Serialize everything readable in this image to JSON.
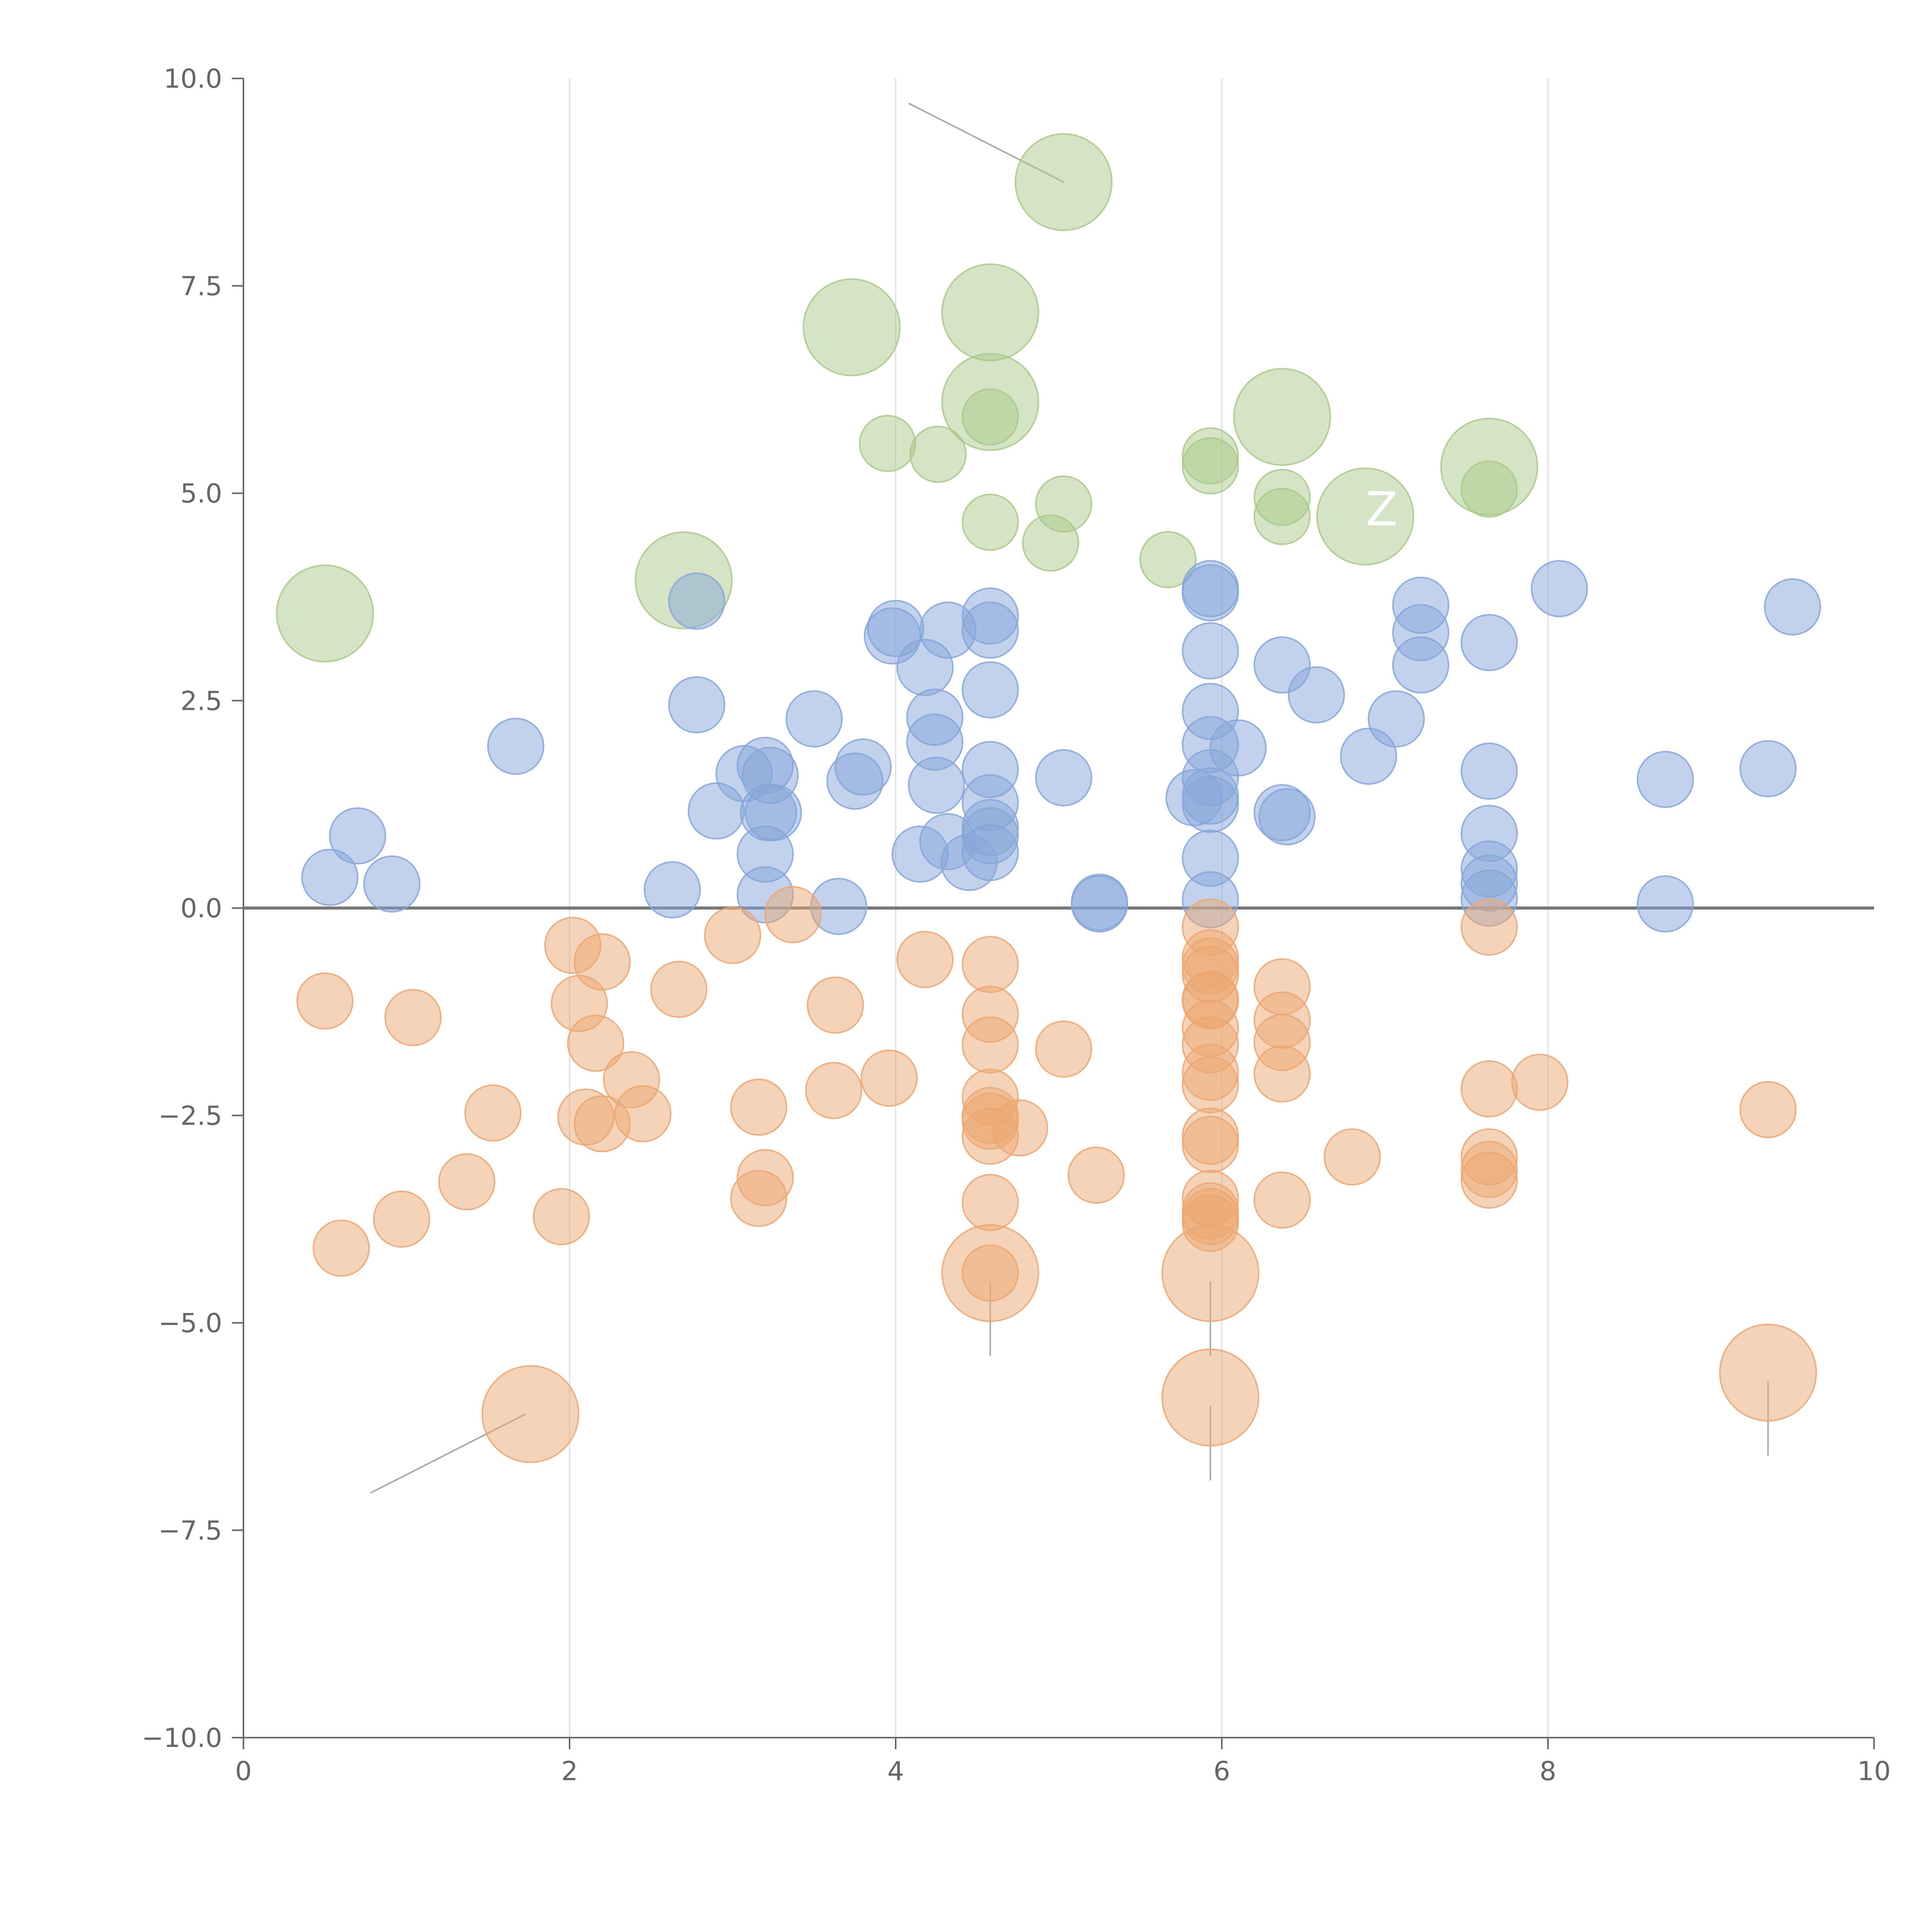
{
  "chart_data": {
    "type": "scatter",
    "title": "",
    "xlabel": "",
    "ylabel": "",
    "xlim": [
      0,
      10
    ],
    "ylim": [
      -10,
      10
    ],
    "x_ticks": [
      0,
      2,
      4,
      6,
      8,
      10
    ],
    "x_tick_labels": [
      "0",
      "2",
      "4",
      "6",
      "8",
      "10"
    ],
    "y_ticks": [
      10,
      7.5,
      5,
      2.5,
      0,
      -2.5,
      -5,
      -7.5,
      -10
    ],
    "y_tick_labels": [
      "10.0",
      "7.5",
      "5.0",
      "2.5",
      "0.0",
      "−2.5",
      "−5.0",
      "−7.5",
      "−10.0"
    ],
    "grid": "vertical",
    "zero_line": true,
    "legend": "none",
    "series": [
      {
        "name": "green",
        "color": "#a9c98a",
        "points": [
          {
            "x": 0.5,
            "y": 3.55,
            "r": 3
          },
          {
            "x": 2.7,
            "y": 3.95,
            "r": 3
          },
          {
            "x": 3.73,
            "y": 7.0,
            "r": 3
          },
          {
            "x": 4.58,
            "y": 7.18,
            "r": 3
          },
          {
            "x": 4.58,
            "y": 6.1,
            "r": 3
          },
          {
            "x": 5.03,
            "y": 8.75,
            "r": 3
          },
          {
            "x": 6.37,
            "y": 5.92,
            "r": 3
          },
          {
            "x": 6.88,
            "y": 4.72,
            "r": 3
          },
          {
            "x": 7.64,
            "y": 5.32,
            "r": 3
          },
          {
            "x": 3.95,
            "y": 5.6,
            "r": 1
          },
          {
            "x": 4.26,
            "y": 5.47,
            "r": 1
          },
          {
            "x": 4.58,
            "y": 5.92,
            "r": 1
          },
          {
            "x": 4.58,
            "y": 4.65,
            "r": 1
          },
          {
            "x": 5.03,
            "y": 4.87,
            "r": 1
          },
          {
            "x": 4.95,
            "y": 4.4,
            "r": 1
          },
          {
            "x": 5.67,
            "y": 4.2,
            "r": 1
          },
          {
            "x": 5.93,
            "y": 5.45,
            "r": 1
          },
          {
            "x": 5.93,
            "y": 5.33,
            "r": 1
          },
          {
            "x": 6.37,
            "y": 4.95,
            "r": 1
          },
          {
            "x": 6.37,
            "y": 4.72,
            "r": 1
          },
          {
            "x": 7.64,
            "y": 5.05,
            "r": 1
          }
        ]
      },
      {
        "name": "blue",
        "color": "#86a6d9",
        "points": [
          {
            "x": 0.53,
            "y": 0.37
          },
          {
            "x": 0.7,
            "y": 0.87
          },
          {
            "x": 0.91,
            "y": 0.29
          },
          {
            "x": 1.67,
            "y": 1.95
          },
          {
            "x": 2.63,
            "y": 0.22
          },
          {
            "x": 2.78,
            "y": 2.45
          },
          {
            "x": 2.78,
            "y": 3.7
          },
          {
            "x": 2.9,
            "y": 1.17
          },
          {
            "x": 3.07,
            "y": 1.62
          },
          {
            "x": 3.2,
            "y": 1.72
          },
          {
            "x": 3.23,
            "y": 1.6
          },
          {
            "x": 3.22,
            "y": 1.15
          },
          {
            "x": 3.25,
            "y": 1.15
          },
          {
            "x": 3.2,
            "y": 0.65
          },
          {
            "x": 3.2,
            "y": 0.16
          },
          {
            "x": 3.5,
            "y": 2.28
          },
          {
            "x": 3.65,
            "y": 0.02
          },
          {
            "x": 3.75,
            "y": 1.53
          },
          {
            "x": 3.8,
            "y": 1.7
          },
          {
            "x": 3.98,
            "y": 3.28
          },
          {
            "x": 4.0,
            "y": 3.37
          },
          {
            "x": 4.18,
            "y": 2.9
          },
          {
            "x": 4.15,
            "y": 0.65
          },
          {
            "x": 4.24,
            "y": 2.3
          },
          {
            "x": 4.24,
            "y": 2.0
          },
          {
            "x": 4.25,
            "y": 1.48
          },
          {
            "x": 4.32,
            "y": 3.35
          },
          {
            "x": 4.32,
            "y": 0.8
          },
          {
            "x": 4.45,
            "y": 0.55
          },
          {
            "x": 4.58,
            "y": 3.52
          },
          {
            "x": 4.58,
            "y": 3.35
          },
          {
            "x": 4.58,
            "y": 2.63
          },
          {
            "x": 4.58,
            "y": 1.67
          },
          {
            "x": 4.58,
            "y": 1.27
          },
          {
            "x": 4.58,
            "y": 0.97
          },
          {
            "x": 4.58,
            "y": 0.87
          },
          {
            "x": 4.58,
            "y": 0.67
          },
          {
            "x": 5.03,
            "y": 1.57
          },
          {
            "x": 5.25,
            "y": 0.07
          },
          {
            "x": 5.25,
            "y": 0.05
          },
          {
            "x": 5.83,
            "y": 1.33
          },
          {
            "x": 5.93,
            "y": 3.85
          },
          {
            "x": 5.93,
            "y": 3.8
          },
          {
            "x": 5.93,
            "y": 3.1
          },
          {
            "x": 5.93,
            "y": 2.37
          },
          {
            "x": 5.93,
            "y": 1.97
          },
          {
            "x": 5.93,
            "y": 1.57
          },
          {
            "x": 5.93,
            "y": 1.35
          },
          {
            "x": 5.93,
            "y": 1.25
          },
          {
            "x": 5.93,
            "y": 0.6
          },
          {
            "x": 5.93,
            "y": 0.1
          },
          {
            "x": 6.1,
            "y": 1.93
          },
          {
            "x": 6.37,
            "y": 2.93
          },
          {
            "x": 6.37,
            "y": 1.15
          },
          {
            "x": 6.4,
            "y": 1.1
          },
          {
            "x": 6.58,
            "y": 2.57
          },
          {
            "x": 6.9,
            "y": 1.83
          },
          {
            "x": 7.07,
            "y": 2.28
          },
          {
            "x": 7.22,
            "y": 3.65
          },
          {
            "x": 7.22,
            "y": 3.32
          },
          {
            "x": 7.22,
            "y": 2.93
          },
          {
            "x": 7.64,
            "y": 3.2
          },
          {
            "x": 7.64,
            "y": 1.65
          },
          {
            "x": 7.64,
            "y": 0.9
          },
          {
            "x": 7.64,
            "y": 0.47
          },
          {
            "x": 7.64,
            "y": 0.3
          },
          {
            "x": 7.64,
            "y": 0.12
          },
          {
            "x": 8.07,
            "y": 3.85
          },
          {
            "x": 8.72,
            "y": 1.55
          },
          {
            "x": 8.72,
            "y": 0.05
          },
          {
            "x": 9.35,
            "y": 1.68
          },
          {
            "x": 9.5,
            "y": 3.63
          }
        ]
      },
      {
        "name": "orange",
        "color": "#eba772",
        "points": [
          {
            "x": 1.76,
            "y": -6.1,
            "r": 3
          },
          {
            "x": 4.58,
            "y": -4.4,
            "r": 3
          },
          {
            "x": 5.93,
            "y": -4.4,
            "r": 3
          },
          {
            "x": 5.93,
            "y": -5.9,
            "r": 3
          },
          {
            "x": 9.35,
            "y": -5.6,
            "r": 3
          },
          {
            "x": 0.5,
            "y": -1.12,
            "r": 1
          },
          {
            "x": 0.6,
            "y": -4.1,
            "r": 1
          },
          {
            "x": 0.97,
            "y": -3.75,
            "r": 1
          },
          {
            "x": 1.04,
            "y": -1.32,
            "r": 1
          },
          {
            "x": 1.37,
            "y": -3.3,
            "r": 1
          },
          {
            "x": 1.53,
            "y": -2.47,
            "r": 1
          },
          {
            "x": 1.95,
            "y": -3.72,
            "r": 1
          },
          {
            "x": 2.02,
            "y": -0.45,
            "r": 1
          },
          {
            "x": 2.06,
            "y": -1.15,
            "r": 1
          },
          {
            "x": 2.1,
            "y": -2.52,
            "r": 1
          },
          {
            "x": 2.16,
            "y": -1.63,
            "r": 1
          },
          {
            "x": 2.2,
            "y": -0.65,
            "r": 1
          },
          {
            "x": 2.2,
            "y": -2.6,
            "r": 1
          },
          {
            "x": 2.38,
            "y": -2.07,
            "r": 1
          },
          {
            "x": 2.45,
            "y": -2.48,
            "r": 1
          },
          {
            "x": 2.67,
            "y": -0.98,
            "r": 1
          },
          {
            "x": 3.0,
            "y": -0.33,
            "r": 1
          },
          {
            "x": 3.16,
            "y": -2.4,
            "r": 1
          },
          {
            "x": 3.2,
            "y": -3.25,
            "r": 1
          },
          {
            "x": 3.16,
            "y": -3.5,
            "r": 1
          },
          {
            "x": 3.37,
            "y": -0.08,
            "r": 1
          },
          {
            "x": 3.62,
            "y": -2.2,
            "r": 1
          },
          {
            "x": 3.63,
            "y": -1.17,
            "r": 1
          },
          {
            "x": 3.96,
            "y": -2.05,
            "r": 1
          },
          {
            "x": 4.18,
            "y": -0.62,
            "r": 1
          },
          {
            "x": 4.58,
            "y": -0.68,
            "r": 1
          },
          {
            "x": 4.58,
            "y": -1.28,
            "r": 1
          },
          {
            "x": 4.58,
            "y": -1.65,
            "r": 1
          },
          {
            "x": 4.58,
            "y": -2.28,
            "r": 1
          },
          {
            "x": 4.58,
            "y": -2.5,
            "r": 1
          },
          {
            "x": 4.58,
            "y": -2.57,
            "r": 1
          },
          {
            "x": 4.58,
            "y": -2.75,
            "r": 1
          },
          {
            "x": 4.76,
            "y": -2.65,
            "r": 1
          },
          {
            "x": 4.58,
            "y": -3.55,
            "r": 1
          },
          {
            "x": 4.58,
            "y": -4.4,
            "r": 1
          },
          {
            "x": 5.03,
            "y": -1.7,
            "r": 1
          },
          {
            "x": 5.23,
            "y": -3.22,
            "r": 1
          },
          {
            "x": 5.93,
            "y": -0.23,
            "r": 1
          },
          {
            "x": 5.93,
            "y": -0.6,
            "r": 1
          },
          {
            "x": 5.93,
            "y": -0.7,
            "r": 1
          },
          {
            "x": 5.93,
            "y": -0.8,
            "r": 1
          },
          {
            "x": 5.93,
            "y": -1.1,
            "r": 1
          },
          {
            "x": 5.93,
            "y": -1.12,
            "r": 1
          },
          {
            "x": 5.93,
            "y": -1.45,
            "r": 1
          },
          {
            "x": 5.93,
            "y": -1.65,
            "r": 1
          },
          {
            "x": 5.93,
            "y": -1.98,
            "r": 1
          },
          {
            "x": 5.93,
            "y": -2.13,
            "r": 1
          },
          {
            "x": 5.93,
            "y": -2.75,
            "r": 1
          },
          {
            "x": 5.93,
            "y": -2.85,
            "r": 1
          },
          {
            "x": 5.93,
            "y": -3.5,
            "r": 1
          },
          {
            "x": 5.93,
            "y": -3.65,
            "r": 1
          },
          {
            "x": 5.93,
            "y": -3.72,
            "r": 1
          },
          {
            "x": 5.93,
            "y": -3.8,
            "r": 1
          },
          {
            "x": 6.37,
            "y": -0.95,
            "r": 1
          },
          {
            "x": 6.37,
            "y": -1.35,
            "r": 1
          },
          {
            "x": 6.37,
            "y": -1.62,
            "r": 1
          },
          {
            "x": 6.37,
            "y": -2.0,
            "r": 1
          },
          {
            "x": 6.37,
            "y": -3.52,
            "r": 1
          },
          {
            "x": 6.8,
            "y": -3.0,
            "r": 1
          },
          {
            "x": 7.64,
            "y": -0.23,
            "r": 1
          },
          {
            "x": 7.64,
            "y": -2.18,
            "r": 1
          },
          {
            "x": 7.64,
            "y": -3.0,
            "r": 1
          },
          {
            "x": 7.64,
            "y": -3.15,
            "r": 1
          },
          {
            "x": 7.64,
            "y": -3.28,
            "r": 1
          },
          {
            "x": 7.95,
            "y": -2.1,
            "r": 1
          },
          {
            "x": 9.35,
            "y": -2.43,
            "r": 1
          }
        ]
      }
    ],
    "annotations": [
      {
        "text": "Z",
        "x": 6.98,
        "y": 4.8
      }
    ]
  }
}
